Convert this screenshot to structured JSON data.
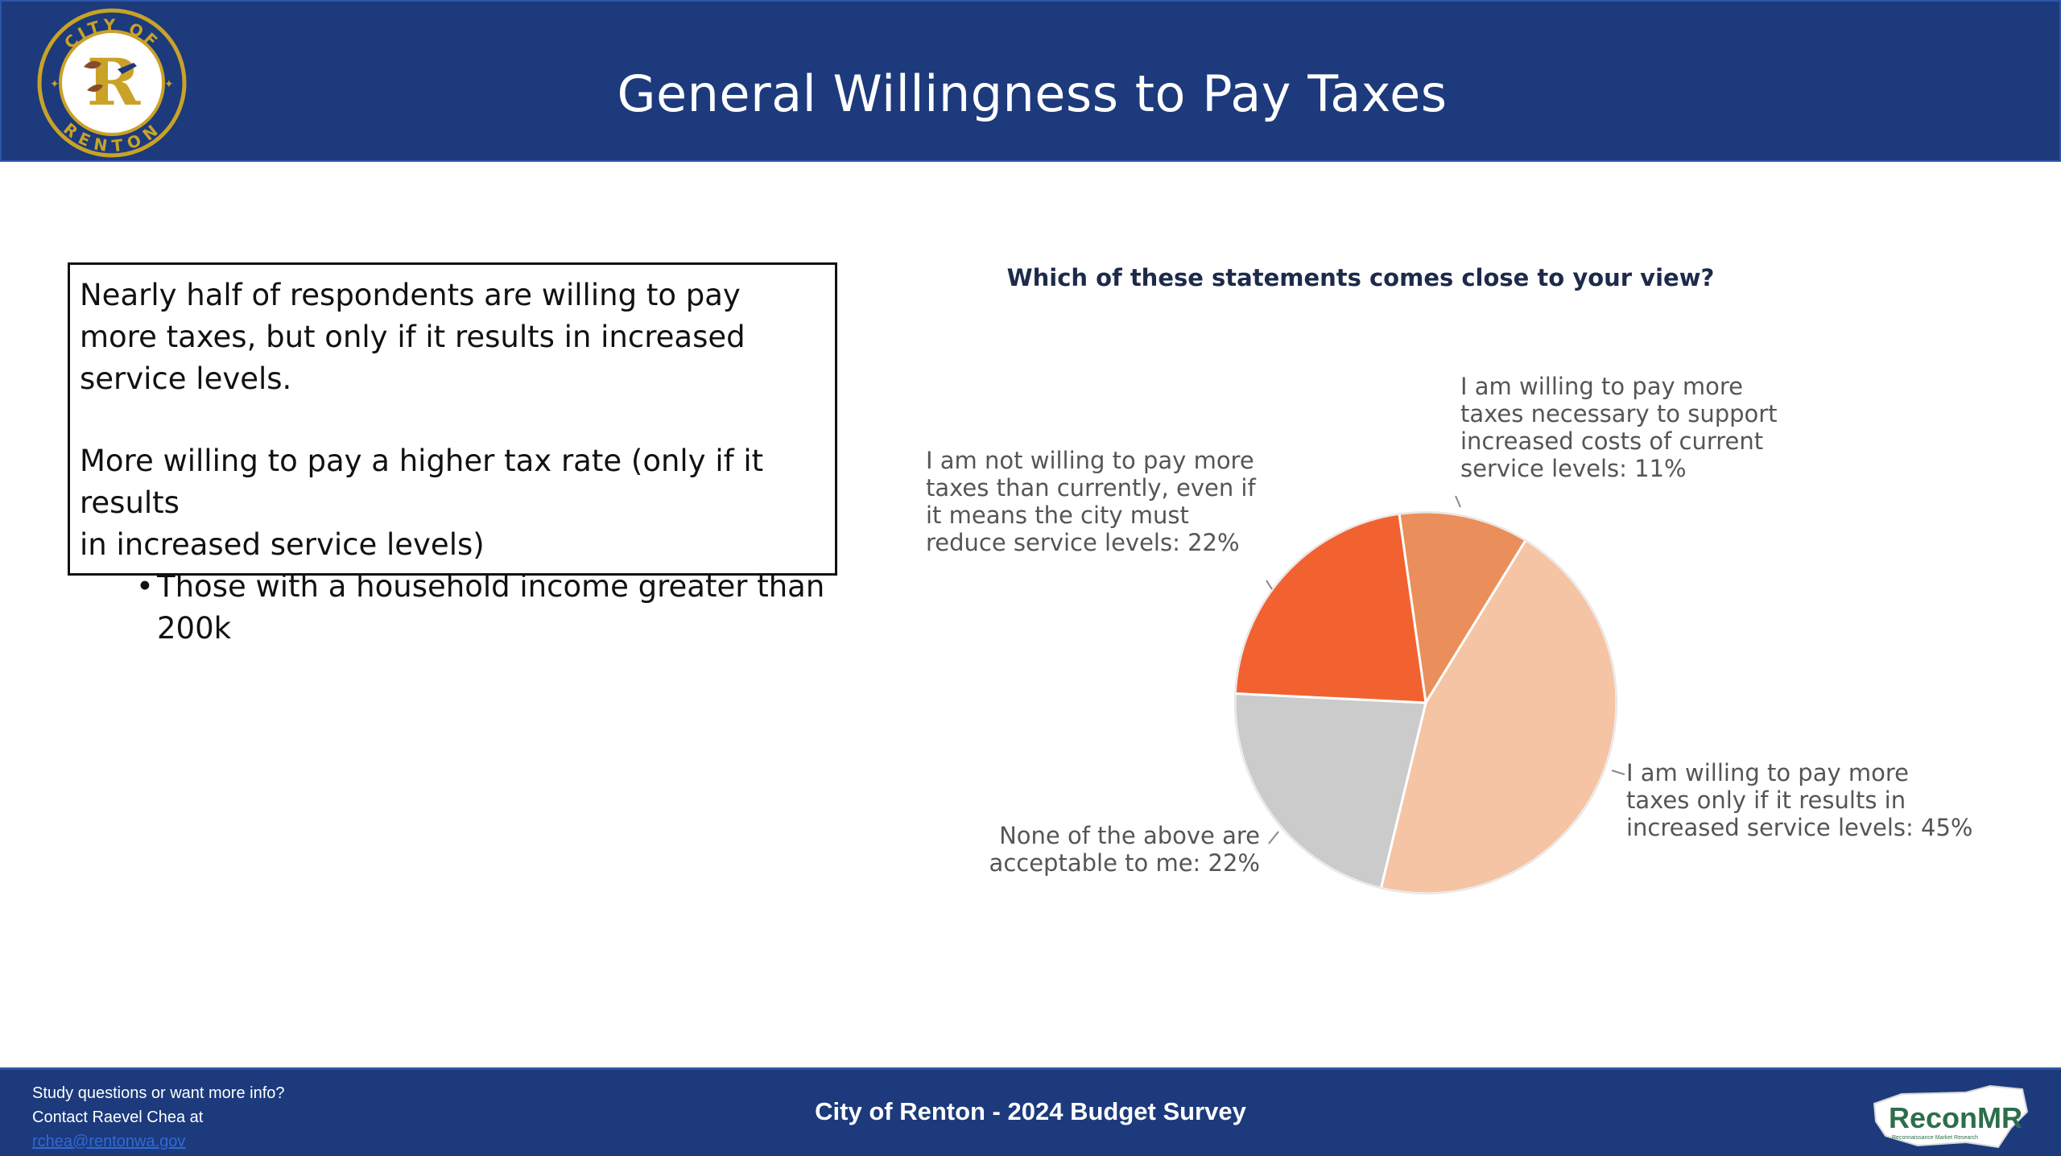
{
  "header": {
    "title": "General Willingness to Pay Taxes",
    "logo_text_top": "CITY OF",
    "logo_text_bottom": "RENTON",
    "colors": {
      "bar": "#1c3a7c",
      "logo_ring": "#c9a227"
    }
  },
  "summary_box": {
    "paragraph1": "Nearly half of respondents are willing to pay more taxes, but only if it results in increased service levels.",
    "paragraph2_line1": "More willing to pay a higher tax rate (only if it results",
    "paragraph2_line2": "in increased service levels)",
    "bullet_marker": "•",
    "bullet_line1": "Those with a household income greater than",
    "bullet_line2": "200k"
  },
  "chart_data": {
    "type": "pie",
    "title": "Which of these statements comes close to your view?",
    "slices": [
      {
        "label_lines": [
          "I am willing to pay more",
          "taxes necessary to support",
          "increased costs of current",
          "service levels: 11%"
        ],
        "value": 11,
        "color": "#ea8f5b"
      },
      {
        "label_lines": [
          "I am willing to pay more",
          "taxes only if it results in",
          "increased service levels: 45%"
        ],
        "value": 45,
        "color": "#f4c4a4"
      },
      {
        "label_lines": [
          "None of the above are",
          "acceptable to me: 22%"
        ],
        "value": 22,
        "color": "#cbcbcb"
      },
      {
        "label_lines": [
          "I am not willing to pay more",
          "taxes than currently, even if",
          "it means the city must",
          "reduce service levels: 22%"
        ],
        "value": 22,
        "color": "#f26230"
      }
    ]
  },
  "footer": {
    "contact_line1": "Study questions or want more info?",
    "contact_line2": "Contact Raevel Chea at",
    "contact_email": "rchea@rentonwa.gov",
    "center_text": "City of Renton - 2024 Budget Survey",
    "brand_logo_text": "ReconMR",
    "brand_logo_subtext": "Reconnaissance Market Research",
    "colors": {
      "bar": "#1c3a7c",
      "email": "#2f6bd6"
    }
  }
}
